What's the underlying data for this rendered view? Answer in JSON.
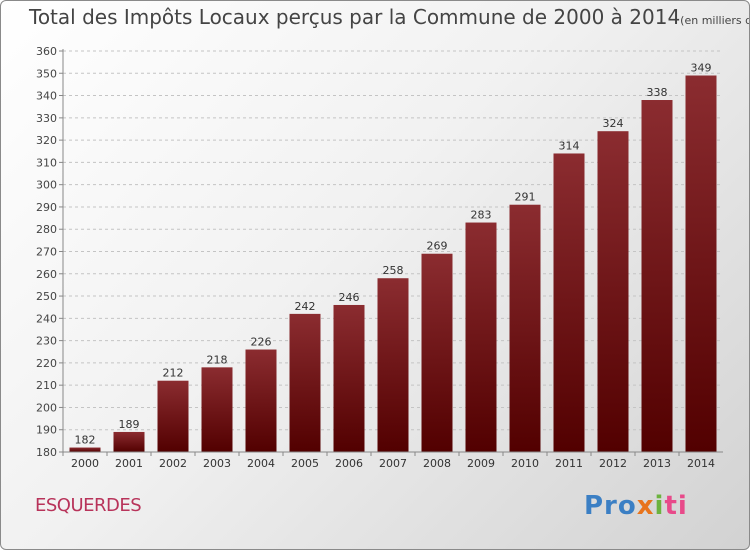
{
  "chart_data": {
    "type": "bar",
    "title": "Total des Impôts Locaux perçus par la Commune de 2000 à 2014",
    "unit_note": "(en milliers d'€)",
    "categories": [
      "2000",
      "2001",
      "2002",
      "2003",
      "2004",
      "2005",
      "2006",
      "2007",
      "2008",
      "2009",
      "2010",
      "2011",
      "2012",
      "2013",
      "2014"
    ],
    "values": [
      182,
      189,
      212,
      218,
      226,
      242,
      246,
      258,
      269,
      283,
      291,
      314,
      324,
      338,
      349
    ],
    "ylim": [
      180,
      360
    ],
    "ytick_step": 10,
    "grid": "dashed-horizontal",
    "bar_color_top": "#8b2c30",
    "bar_color_bottom": "#520000"
  },
  "commune": "ESQUERDES",
  "logo": {
    "p1": "Pro",
    "p2": "x",
    "p3": "i",
    "p4": "ti"
  }
}
